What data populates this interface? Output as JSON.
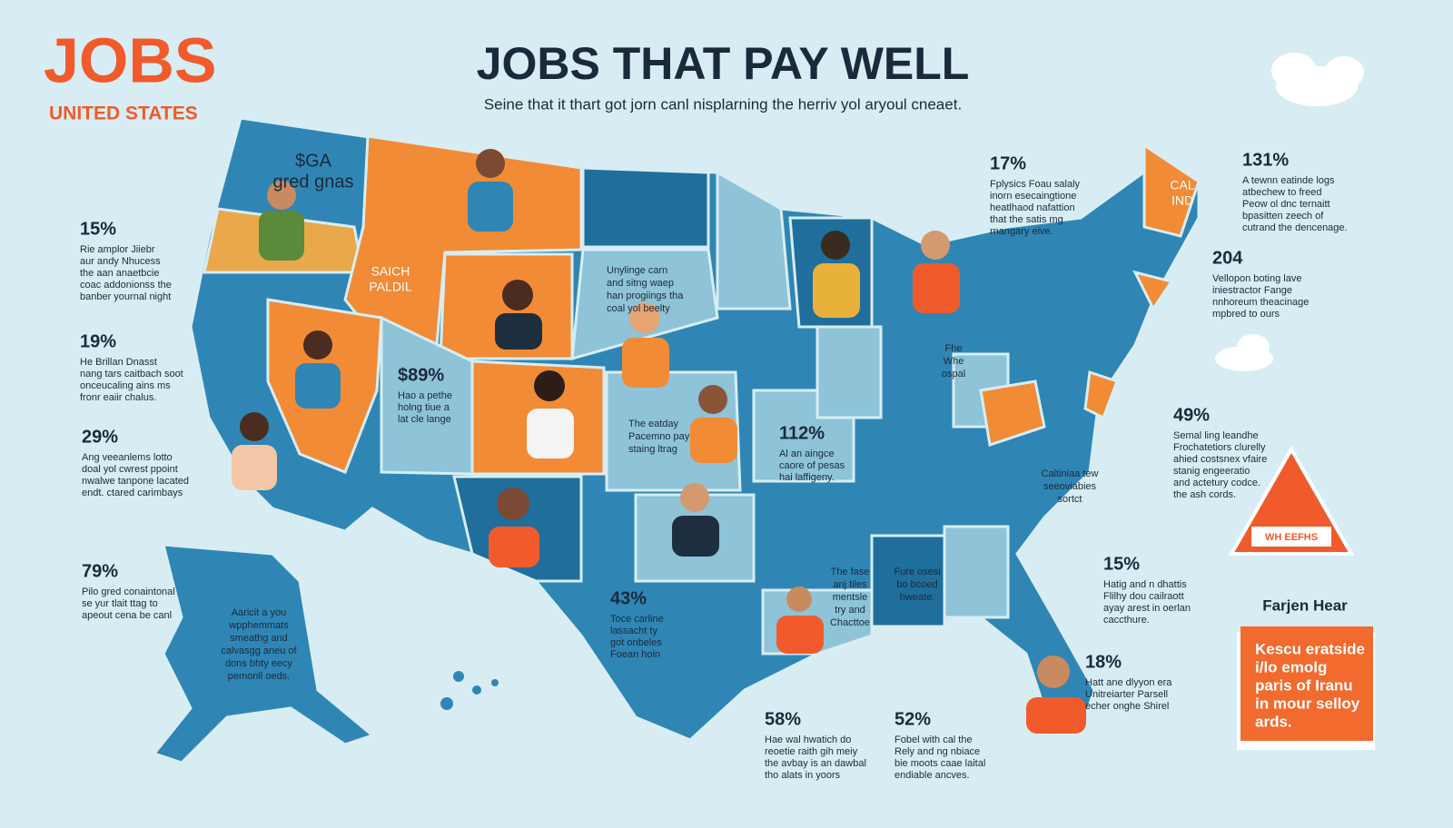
{
  "header": {
    "logo": "JOBS",
    "logo_sub": "UNITED STATES",
    "title": "JOBS THAT PAY WELL",
    "subtitle": "Seine that it thart got jorn canl nisplarning the herriv yol aryoul cneaet."
  },
  "callouts": [
    {
      "stat": "15%",
      "lines": [
        "Rie amplor Jiiebr",
        "aur andy Nhucess",
        "the aan anaetbcie",
        "coac addonionss the",
        "banber yournal night"
      ]
    },
    {
      "stat": "19%",
      "lines": [
        "He Brillan Dnasst",
        "nang tars caitbach soot",
        "onceucaling ains ms",
        "fronr eaiir chalus."
      ]
    },
    {
      "stat": "29%",
      "lines": [
        "Ang veeanlems lotto",
        "doal yol cwrest ppoint",
        "nwalwe tanpone lacated",
        "endt. ctared carimbays"
      ]
    },
    {
      "stat": "79%",
      "lines": [
        "Pilo gred conaintonal",
        "se yur tlait ttag to",
        "apeout cena be canl"
      ]
    },
    {
      "stat": "58%",
      "lines": [
        "Hae wal hwatich do",
        "reoetie raith gih meiy",
        "the avbay is an dawbal",
        "tho alats in yoors"
      ]
    },
    {
      "stat": "52%",
      "lines": [
        "Fobel with cal the",
        "Rely and ng nbiace",
        "bie moots caae laital",
        "endiable ancves."
      ]
    },
    {
      "stat": "17%",
      "lines": [
        "Fplysics Foau salaly",
        "inorn esecaingtione",
        "heatlhaod nafattion",
        "that the satis mg",
        "rnangary eive."
      ]
    },
    {
      "stat": "131%",
      "lines": [
        "A tewnn eatinde logs",
        "atbechew to freed",
        "Peow ol dnc ternaitt",
        "bpasitten zeech of",
        "cutrand the dencenage."
      ]
    },
    {
      "stat": "204",
      "lines": [
        "Vellopon boting lave",
        "iniestractor Fange",
        "nnhoreum theacinage",
        "mpbred to ours"
      ]
    },
    {
      "stat": "49%",
      "lines": [
        "Semal ling leandhe",
        "Frochatetiors clurelly",
        "ahied costsnex vfaire",
        "stanig engeeratio",
        "and actetury codce.",
        "the ash cords."
      ]
    },
    {
      "stat": "15%",
      "lines": [
        "Hatig and n dhattis",
        "Flilhy dou cailraott",
        "ayay arest in oerlan",
        "caccthure."
      ]
    },
    {
      "stat": "18%",
      "lines": [
        "Hatt ane dlyyon era",
        "Unitreiarter Parsell",
        "echer onghe Shirel"
      ]
    },
    {
      "stat": "$89%",
      "lines": [
        "Hao a pethe",
        "holng tiue a",
        "lat cle lange"
      ]
    },
    {
      "stat": "112%",
      "lines": [
        "Al an aingce",
        "caore of pesas",
        "hai laffigeny."
      ]
    },
    {
      "stat": "43%",
      "lines": [
        "Toce carline",
        "lassacht ty",
        "got onbeles",
        "Foean hoin"
      ]
    }
  ],
  "map_labels": [
    {
      "lines": [
        "$GA",
        "gred gnas"
      ]
    },
    {
      "lines": [
        "SAICH",
        "PALDIL"
      ]
    },
    {
      "lines": [
        "Unylinge carn",
        "and sitng waep",
        "han progiings tha",
        "coal yol beelty"
      ]
    },
    {
      "lines": [
        "The eatday",
        "Pacemno pay",
        "staing ltrag"
      ]
    },
    {
      "lines": [
        "Aaricit a you",
        "wpphemmats",
        "smeathg and",
        "calvasgg aneu of",
        "dons bhty eecy",
        "pemonll oeds."
      ]
    },
    {
      "lines": [
        "The fase",
        "anj tiles",
        "mentsle",
        "try and",
        "Chacttoe"
      ]
    },
    {
      "lines": [
        "Fure osesi",
        "bo bcoed",
        "hweate."
      ]
    },
    {
      "lines": [
        "CAL",
        "IND"
      ]
    },
    {
      "lines": [
        "Fhe",
        "Whe",
        "ospal"
      ]
    },
    {
      "lines": [
        "Caltiniaa tew",
        "seeoviabies",
        "sortct"
      ]
    }
  ],
  "side_note": {
    "heading": "Farjen Hear",
    "lines": [
      "Kescu eratside",
      "i/lo emolg",
      "paris of Iranu",
      "in mour selloy",
      "ards."
    ]
  },
  "sign": "WH EEFHS"
}
